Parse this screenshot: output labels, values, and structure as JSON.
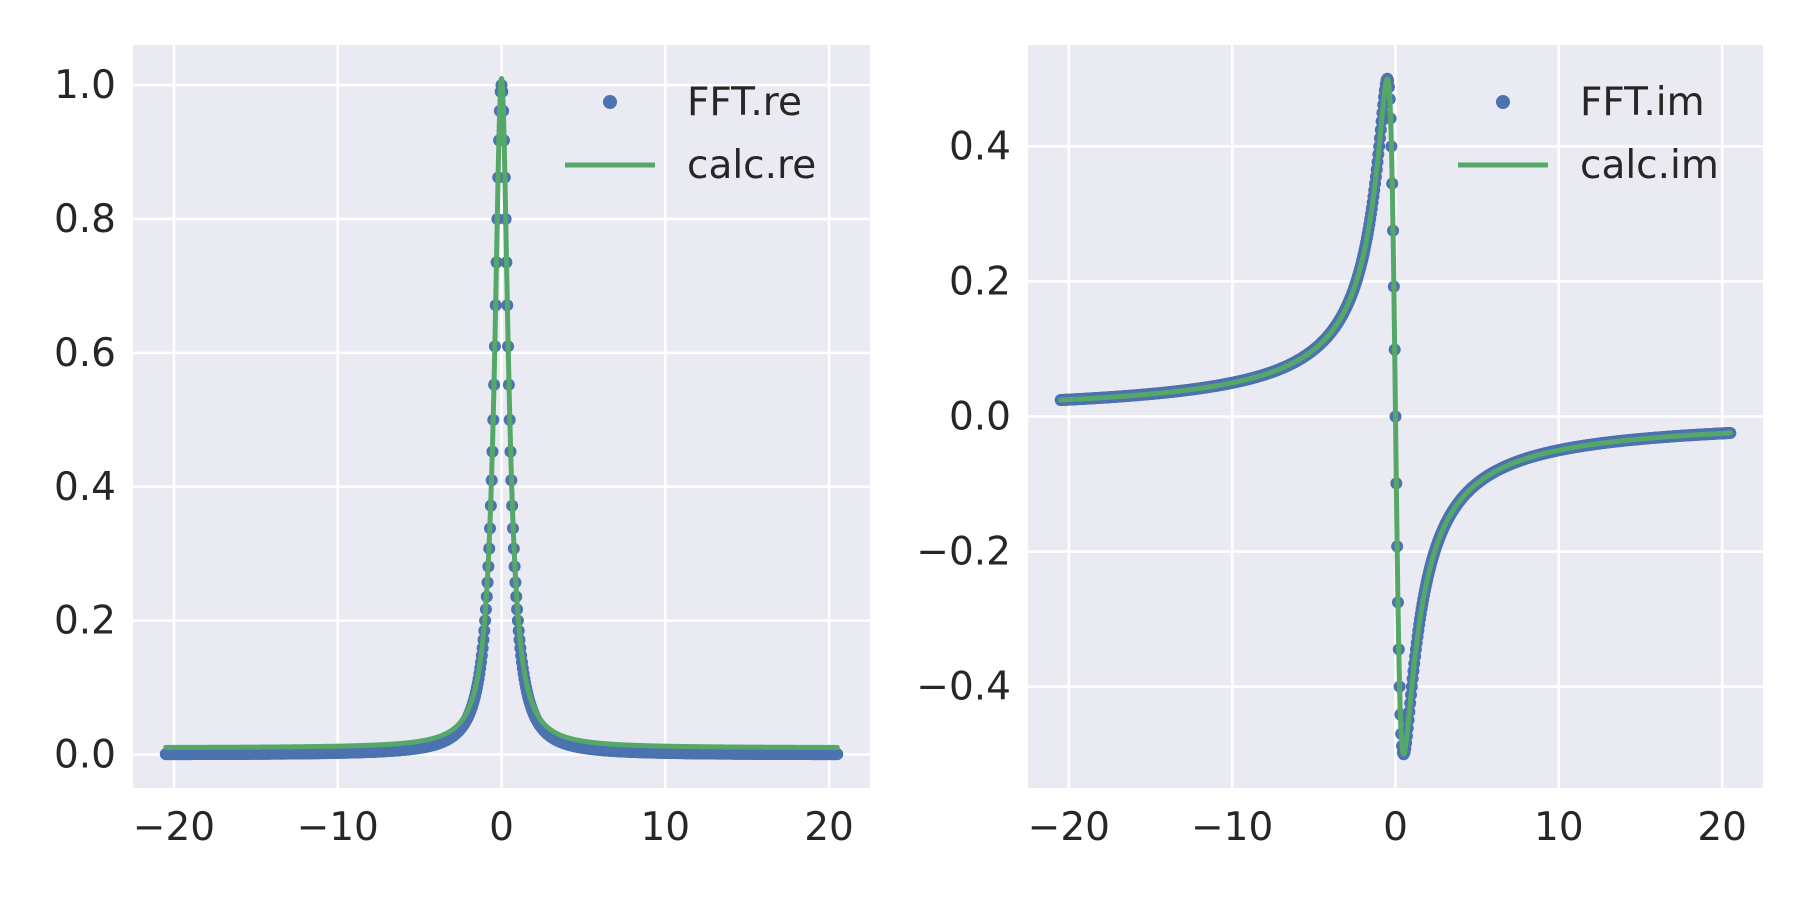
{
  "chart_data": [
    {
      "type": "line",
      "title": "",
      "xlabel": "",
      "ylabel": "",
      "xlim": [
        -22.5,
        22.5
      ],
      "ylim": [
        -0.05,
        1.06
      ],
      "xticks": [
        -20,
        -10,
        0,
        10,
        20
      ],
      "xtick_labels": [
        "−20",
        "−10",
        "0",
        "10",
        "20"
      ],
      "yticks": [
        0.0,
        0.2,
        0.4,
        0.6,
        0.8,
        1.0
      ],
      "ytick_labels": [
        "0.0",
        "0.2",
        "0.4",
        "0.6",
        "0.8",
        "1.0"
      ],
      "grid": true,
      "legend": "top-right",
      "series": [
        {
          "name": "FFT.re",
          "kind": "scatter",
          "color": "#4c72b0",
          "function": "lorentz_re",
          "x_range": [
            -20.5,
            20.5
          ],
          "offset": 0.0
        },
        {
          "name": "calc.re",
          "kind": "line",
          "color": "#55a868",
          "function": "lorentz_re",
          "x_range": [
            -20.5,
            20.5
          ],
          "offset": 0.01
        }
      ]
    },
    {
      "type": "line",
      "title": "",
      "xlabel": "",
      "ylabel": "",
      "xlim": [
        -22.5,
        22.5
      ],
      "ylim": [
        -0.55,
        0.55
      ],
      "xticks": [
        -20,
        -10,
        0,
        10,
        20
      ],
      "xtick_labels": [
        "−20",
        "−10",
        "0",
        "10",
        "20"
      ],
      "yticks": [
        -0.4,
        -0.2,
        0.0,
        0.2,
        0.4
      ],
      "ytick_labels": [
        "−0.4",
        "−0.2",
        "0.0",
        "0.2",
        "0.4"
      ],
      "grid": true,
      "legend": "top-right",
      "series": [
        {
          "name": "FFT.im",
          "kind": "scatter",
          "color": "#4c72b0",
          "function": "lorentz_im_fft",
          "x_range": [
            -20.5,
            20.5
          ],
          "offset": 0.0
        },
        {
          "name": "calc.im",
          "kind": "line",
          "color": "#55a868",
          "function": "lorentz_im_calc",
          "x_range": [
            -20.5,
            20.5
          ],
          "offset": 0.0
        }
      ]
    }
  ],
  "style": {
    "axes_bg": "#eaeaf2",
    "grid_color": "#ffffff",
    "text_color": "#262626"
  }
}
